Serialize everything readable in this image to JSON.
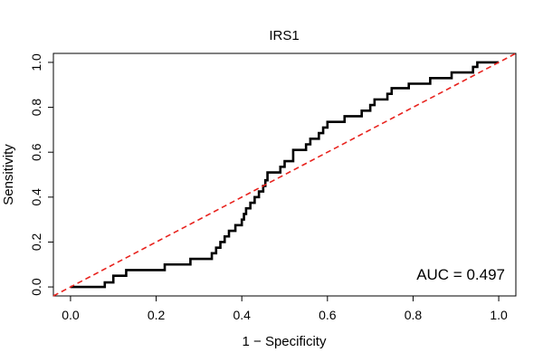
{
  "chart_data": {
    "type": "line",
    "title": "IRS1",
    "xlabel": "1 − Specificity",
    "ylabel": "Sensitivity",
    "xlim": [
      -0.04,
      1.04
    ],
    "ylim": [
      -0.04,
      1.04
    ],
    "xticks": [
      "0.0",
      "0.2",
      "0.4",
      "0.6",
      "0.8",
      "1.0"
    ],
    "yticks": [
      "0.0",
      "0.2",
      "0.4",
      "0.6",
      "0.8",
      "1.0"
    ],
    "grid": false,
    "annotation": "AUC = 0.497",
    "series": [
      {
        "kind": "step",
        "color": "#000000",
        "points": [
          [
            0.0,
            0.0
          ],
          [
            0.08,
            0.0
          ],
          [
            0.08,
            0.02
          ],
          [
            0.1,
            0.02
          ],
          [
            0.1,
            0.05
          ],
          [
            0.13,
            0.05
          ],
          [
            0.13,
            0.075
          ],
          [
            0.22,
            0.075
          ],
          [
            0.22,
            0.1
          ],
          [
            0.28,
            0.1
          ],
          [
            0.28,
            0.125
          ],
          [
            0.33,
            0.125
          ],
          [
            0.33,
            0.15
          ],
          [
            0.34,
            0.15
          ],
          [
            0.34,
            0.175
          ],
          [
            0.35,
            0.175
          ],
          [
            0.35,
            0.2
          ],
          [
            0.36,
            0.2
          ],
          [
            0.36,
            0.225
          ],
          [
            0.37,
            0.225
          ],
          [
            0.37,
            0.25
          ],
          [
            0.385,
            0.25
          ],
          [
            0.385,
            0.275
          ],
          [
            0.4,
            0.275
          ],
          [
            0.4,
            0.3
          ],
          [
            0.405,
            0.3
          ],
          [
            0.405,
            0.325
          ],
          [
            0.41,
            0.325
          ],
          [
            0.41,
            0.35
          ],
          [
            0.42,
            0.35
          ],
          [
            0.42,
            0.375
          ],
          [
            0.43,
            0.375
          ],
          [
            0.43,
            0.4
          ],
          [
            0.44,
            0.4
          ],
          [
            0.44,
            0.425
          ],
          [
            0.45,
            0.425
          ],
          [
            0.45,
            0.45
          ],
          [
            0.455,
            0.45
          ],
          [
            0.455,
            0.475
          ],
          [
            0.46,
            0.475
          ],
          [
            0.46,
            0.51
          ],
          [
            0.49,
            0.51
          ],
          [
            0.49,
            0.535
          ],
          [
            0.5,
            0.535
          ],
          [
            0.5,
            0.56
          ],
          [
            0.52,
            0.56
          ],
          [
            0.52,
            0.61
          ],
          [
            0.55,
            0.61
          ],
          [
            0.55,
            0.635
          ],
          [
            0.56,
            0.635
          ],
          [
            0.56,
            0.66
          ],
          [
            0.58,
            0.66
          ],
          [
            0.58,
            0.685
          ],
          [
            0.59,
            0.685
          ],
          [
            0.59,
            0.71
          ],
          [
            0.6,
            0.71
          ],
          [
            0.6,
            0.735
          ],
          [
            0.64,
            0.735
          ],
          [
            0.64,
            0.76
          ],
          [
            0.68,
            0.76
          ],
          [
            0.68,
            0.785
          ],
          [
            0.7,
            0.785
          ],
          [
            0.7,
            0.81
          ],
          [
            0.71,
            0.81
          ],
          [
            0.71,
            0.835
          ],
          [
            0.74,
            0.835
          ],
          [
            0.74,
            0.86
          ],
          [
            0.75,
            0.86
          ],
          [
            0.75,
            0.885
          ],
          [
            0.79,
            0.885
          ],
          [
            0.79,
            0.905
          ],
          [
            0.84,
            0.905
          ],
          [
            0.84,
            0.93
          ],
          [
            0.89,
            0.93
          ],
          [
            0.89,
            0.955
          ],
          [
            0.94,
            0.955
          ],
          [
            0.94,
            0.98
          ],
          [
            0.95,
            0.98
          ],
          [
            0.95,
            1.0
          ],
          [
            1.0,
            1.0
          ]
        ]
      },
      {
        "kind": "reference",
        "color": "#e8231e",
        "dash": true,
        "points": [
          [
            -0.04,
            -0.04
          ],
          [
            1.04,
            1.04
          ]
        ]
      }
    ]
  }
}
